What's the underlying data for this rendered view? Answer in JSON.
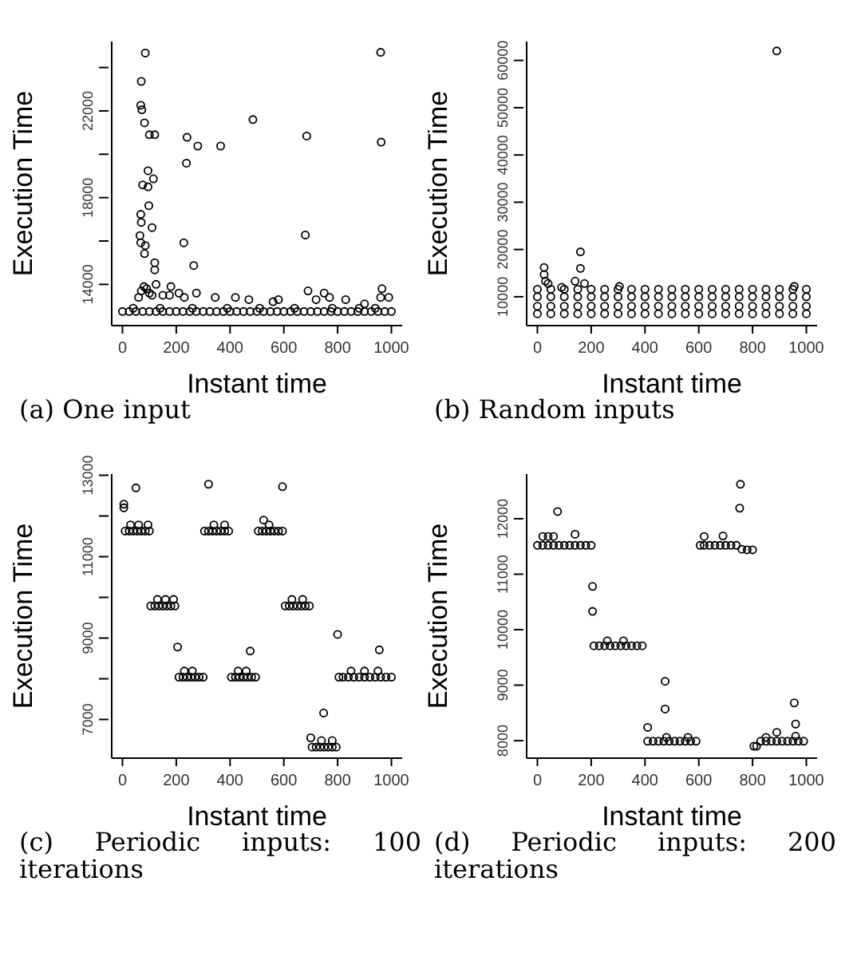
{
  "chart_data": [
    {
      "type": "scatter",
      "title": "(a) One input",
      "xlabel": "Instant time",
      "ylabel": "Execution Time",
      "color": "#000000",
      "marker": "circle",
      "xlim": [
        -40,
        1040
      ],
      "xticks": [
        0,
        200,
        400,
        600,
        800,
        1000
      ],
      "ylim": [
        12100,
        25200
      ],
      "yticks": [
        14000,
        {
          "value": 16000,
          "label": null
        },
        18000,
        {
          "value": 20000,
          "label": null
        },
        22000,
        {
          "value": 24000,
          "label": null
        }
      ],
      "x": [
        85,
        960,
        70,
        68,
        72,
        82,
        100,
        120,
        240,
        280,
        365,
        485,
        685,
        962,
        238,
        95,
        115,
        75,
        95,
        98,
        68,
        70,
        110,
        65,
        68,
        85,
        82,
        228,
        680,
        120,
        120,
        265,
        70,
        80,
        90,
        100,
        110,
        125,
        60,
        150,
        180,
        175,
        210,
        230,
        275,
        345,
        420,
        470,
        560,
        580,
        690,
        720,
        750,
        770,
        830,
        900,
        960,
        965,
        990,
        0,
        25,
        50,
        75,
        100,
        125,
        150,
        175,
        200,
        225,
        250,
        275,
        300,
        325,
        350,
        375,
        400,
        425,
        450,
        475,
        500,
        525,
        550,
        575,
        600,
        625,
        650,
        675,
        700,
        725,
        750,
        775,
        800,
        825,
        850,
        875,
        900,
        925,
        950,
        975,
        1000,
        40,
        140,
        260,
        390,
        510,
        640,
        780,
        880,
        940
      ],
      "values": [
        24670,
        24700,
        23360,
        22260,
        22050,
        21450,
        20900,
        20900,
        20780,
        20380,
        20380,
        21600,
        20840,
        20560,
        19590,
        19240,
        18870,
        18590,
        18500,
        17630,
        17230,
        16860,
        16620,
        16250,
        15920,
        15790,
        15420,
        15920,
        16280,
        15000,
        14670,
        14870,
        13700,
        13900,
        13800,
        13600,
        13500,
        14000,
        13400,
        13500,
        13900,
        13500,
        13600,
        13400,
        13600,
        13400,
        13400,
        13300,
        13200,
        13300,
        13700,
        13300,
        13600,
        13400,
        13300,
        13100,
        13400,
        13800,
        13400,
        12750,
        12750,
        12750,
        12750,
        12750,
        12750,
        12750,
        12750,
        12750,
        12750,
        12750,
        12750,
        12750,
        12750,
        12750,
        12750,
        12750,
        12750,
        12750,
        12750,
        12750,
        12750,
        12750,
        12750,
        12750,
        12750,
        12750,
        12750,
        12750,
        12750,
        12750,
        12750,
        12750,
        12750,
        12750,
        12750,
        12750,
        12750,
        12750,
        12750,
        12750,
        12900,
        12900,
        12900,
        12900,
        12900,
        12900,
        12900,
        12900,
        12900
      ]
    },
    {
      "type": "scatter",
      "title": "(b) Random inputs",
      "xlabel": "Instant time",
      "ylabel": "Execution Time",
      "color": "#000000",
      "marker": "circle",
      "xlim": [
        -40,
        1040
      ],
      "xticks": [
        0,
        200,
        400,
        600,
        800,
        1000
      ],
      "ylim": [
        3900,
        64000
      ],
      "yticks": [
        10000,
        20000,
        30000,
        40000,
        50000,
        60000
      ],
      "x": [
        890,
        160,
        160,
        25,
        25,
        30,
        140,
        40,
        175,
        305,
        955,
        90,
        0,
        50,
        100,
        150,
        200,
        250,
        300,
        350,
        400,
        450,
        500,
        550,
        600,
        650,
        700,
        750,
        800,
        850,
        900,
        950,
        1000,
        0,
        50,
        100,
        150,
        200,
        250,
        300,
        350,
        400,
        450,
        500,
        550,
        600,
        650,
        700,
        750,
        800,
        850,
        900,
        950,
        1000,
        0,
        50,
        100,
        150,
        200,
        250,
        300,
        350,
        400,
        450,
        500,
        550,
        600,
        650,
        700,
        750,
        800,
        850,
        900,
        950,
        1000,
        0,
        50,
        100,
        150,
        200,
        250,
        300,
        350,
        400,
        450,
        500,
        550,
        600,
        650,
        700,
        750,
        800,
        850,
        900,
        950,
        1000
      ],
      "values": [
        62000,
        19500,
        16000,
        16200,
        14700,
        13300,
        13300,
        12800,
        12800,
        12200,
        12200,
        12000,
        11600,
        11600,
        11600,
        11600,
        11600,
        11600,
        11600,
        11600,
        11600,
        11600,
        11600,
        11600,
        11600,
        11600,
        11600,
        11600,
        11600,
        11600,
        11600,
        11600,
        11600,
        10000,
        10000,
        10000,
        10000,
        10000,
        10000,
        10000,
        10000,
        10000,
        10000,
        10000,
        10000,
        10000,
        10000,
        10000,
        10000,
        10000,
        10000,
        10000,
        10000,
        10000,
        8000,
        8000,
        8000,
        8000,
        8000,
        8000,
        8000,
        8000,
        8000,
        8000,
        8000,
        8000,
        8000,
        8000,
        8000,
        8000,
        8000,
        8000,
        8000,
        8000,
        8000,
        6400,
        6400,
        6400,
        6400,
        6400,
        6400,
        6400,
        6400,
        6400,
        6400,
        6400,
        6400,
        6400,
        6400,
        6400,
        6400,
        6400,
        6400,
        6400,
        6400,
        6400
      ]
    },
    {
      "type": "scatter",
      "title": "(c) Periodic inputs: 100 iterations",
      "xlabel": "Instant time",
      "ylabel": "Execution Time",
      "color": "#000000",
      "marker": "circle",
      "xlim": [
        -40,
        1040
      ],
      "xticks": [
        0,
        200,
        400,
        600,
        800,
        1000
      ],
      "ylim": [
        6050,
        13030
      ],
      "yticks": [
        7000,
        {
          "value": 8000,
          "label": null
        },
        9000,
        {
          "value": 10000,
          "label": null
        },
        11000,
        {
          "value": 12000,
          "label": null
        },
        13000
      ],
      "x": [
        5,
        5,
        50,
        10,
        25,
        40,
        55,
        70,
        85,
        100,
        30,
        60,
        95,
        105,
        120,
        135,
        150,
        165,
        180,
        195,
        130,
        160,
        190,
        205,
        210,
        225,
        240,
        255,
        270,
        285,
        300,
        230,
        260,
        305,
        320,
        320,
        335,
        350,
        365,
        380,
        395,
        340,
        380,
        405,
        420,
        435,
        450,
        465,
        480,
        495,
        430,
        460,
        475,
        505,
        520,
        535,
        550,
        565,
        580,
        595,
        525,
        595,
        545,
        605,
        620,
        635,
        650,
        665,
        680,
        695,
        630,
        670,
        700,
        705,
        720,
        735,
        750,
        765,
        780,
        795,
        740,
        780,
        748,
        800,
        805,
        820,
        840,
        860,
        880,
        900,
        920,
        940,
        960,
        980,
        1000,
        850,
        900,
        950,
        955
      ],
      "values": [
        12290,
        12200,
        12690,
        11630,
        11630,
        11630,
        11630,
        11630,
        11630,
        11630,
        11780,
        11780,
        11780,
        9790,
        9790,
        9790,
        9790,
        9790,
        9790,
        9790,
        9950,
        9950,
        9950,
        8780,
        8040,
        8040,
        8040,
        8040,
        8040,
        8040,
        8040,
        8190,
        8190,
        11630,
        11630,
        12780,
        11630,
        11630,
        11630,
        11630,
        11630,
        11780,
        11780,
        8040,
        8040,
        8040,
        8040,
        8040,
        8040,
        8040,
        8190,
        8190,
        8680,
        11630,
        11630,
        11630,
        11630,
        11630,
        11630,
        11630,
        11900,
        12720,
        11780,
        9790,
        9790,
        9790,
        9790,
        9790,
        9790,
        9790,
        9950,
        9950,
        6550,
        6320,
        6320,
        6320,
        6320,
        6320,
        6320,
        6320,
        6480,
        6480,
        7160,
        9090,
        8040,
        8040,
        8040,
        8040,
        8040,
        8040,
        8040,
        8040,
        8040,
        8040,
        8040,
        8190,
        8190,
        8190,
        8710
      ]
    },
    {
      "type": "scatter",
      "title": "(d) Periodic inputs: 200 iterations",
      "xlabel": "Instant time",
      "ylabel": "Execution Time",
      "color": "#000000",
      "marker": "circle",
      "xlim": [
        -40,
        1040
      ],
      "xticks": [
        0,
        200,
        400,
        600,
        800,
        1000
      ],
      "ylim": [
        7685,
        12805
      ],
      "yticks": [
        8000,
        9000,
        10000,
        11000,
        12000
      ],
      "x": [
        0,
        20,
        40,
        60,
        80,
        100,
        120,
        140,
        160,
        180,
        200,
        20,
        40,
        60,
        75,
        140,
        205,
        205,
        210,
        230,
        250,
        270,
        290,
        310,
        330,
        350,
        370,
        390,
        260,
        320,
        410,
        475,
        475,
        410,
        430,
        450,
        470,
        490,
        510,
        530,
        550,
        570,
        590,
        480,
        560,
        605,
        620,
        640,
        660,
        680,
        700,
        720,
        740,
        760,
        780,
        800,
        620,
        690,
        752,
        755,
        805,
        815,
        830,
        850,
        870,
        890,
        910,
        930,
        950,
        970,
        990,
        850,
        890,
        955,
        960,
        960
      ],
      "values": [
        11520,
        11520,
        11520,
        11520,
        11520,
        11520,
        11520,
        11520,
        11520,
        11520,
        11520,
        11680,
        11680,
        11680,
        12130,
        11720,
        10780,
        10330,
        9710,
        9710,
        9710,
        9710,
        9710,
        9710,
        9710,
        9710,
        9710,
        9710,
        9800,
        9800,
        8240,
        9070,
        8570,
        7990,
        7990,
        7990,
        7990,
        7990,
        7990,
        7990,
        7990,
        7990,
        7990,
        8060,
        8060,
        11520,
        11520,
        11520,
        11520,
        11520,
        11520,
        11520,
        11520,
        11450,
        11440,
        11440,
        11680,
        11690,
        12190,
        12620,
        7900,
        7900,
        7990,
        7990,
        7990,
        7990,
        7990,
        7990,
        7990,
        7990,
        7990,
        8060,
        8150,
        8680,
        8300,
        8080
      ]
    }
  ]
}
